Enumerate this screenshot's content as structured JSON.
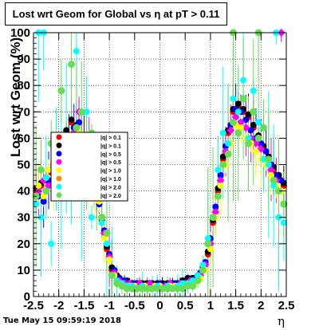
{
  "title": "Lost wrt Geom for Global vs   η at pT > 0.11",
  "footer": "Tue May 15 09:59:19 2018",
  "chart_data": {
    "type": "scatter",
    "title": "Lost wrt Geom for Global vs   η at pT > 0.11",
    "xlabel": "η",
    "ylabel": "Lost wrt Geom (%)",
    "xlim": [
      -2.5,
      2.5
    ],
    "ylim": [
      0,
      100
    ],
    "x_ticks": [
      "-2.5",
      "-2",
      "-1.5",
      "-1",
      "-0.5",
      "0",
      "0.5",
      "1",
      "1.5",
      "2",
      "2.5"
    ],
    "y_ticks": [
      "0",
      "10",
      "20",
      "30",
      "40",
      "50",
      "60",
      "70",
      "80",
      "90",
      "100"
    ],
    "grid": true,
    "legend_position": "center-left",
    "colors": {
      "red": "#ff0000",
      "black": "#000000",
      "blue": "#0000ff",
      "magenta": "#ff00ff",
      "yellow": "#ffff00",
      "cyan": "#00ffff",
      "green": "#66dd55",
      "orange": "#ff8800"
    },
    "legend": [
      {
        "label": "|q| > 0.1",
        "color": "#ff0000"
      },
      {
        "label": "|q| > 0.1",
        "color": "#000000"
      },
      {
        "label": "|q| > 0.5",
        "color": "#0000ff"
      },
      {
        "label": "|q| > 0.5",
        "color": "#ff00ff"
      },
      {
        "label": "|q| > 1.0",
        "color": "#ffff00"
      },
      {
        "label": "|q| > 1.0",
        "color": "#ff8800"
      },
      {
        "label": "|q| > 2.0",
        "color": "#00ffff"
      },
      {
        "label": "|q| > 2.0",
        "color": "#66dd55"
      }
    ],
    "series": [
      {
        "color": "#ff0000",
        "x": [
          -2.45,
          -2.35,
          -2.25,
          -2.15,
          -2.05,
          -1.95,
          -1.85,
          -1.75,
          -1.65,
          -1.55,
          -1.45,
          -1.35,
          -1.25,
          -1.15,
          -1.05,
          -0.95,
          -0.85,
          -0.75,
          -0.65,
          -0.55,
          -0.45,
          -0.35,
          -0.25,
          -0.15,
          -0.05,
          0.05,
          0.15,
          0.25,
          0.35,
          0.45,
          0.55,
          0.65,
          0.75,
          0.85,
          0.95,
          1.05,
          1.15,
          1.25,
          1.35,
          1.45,
          1.55,
          1.65,
          1.75,
          1.85,
          1.95,
          2.05,
          2.15,
          2.25,
          2.35,
          2.45
        ],
        "y": [
          40,
          42,
          44,
          47,
          51,
          56,
          62,
          66,
          64,
          60,
          55,
          47,
          38,
          28,
          18,
          10,
          7,
          6,
          5,
          5,
          5,
          5,
          5,
          5,
          5,
          5,
          5,
          5,
          5,
          6,
          6,
          7,
          8,
          10,
          16,
          28,
          40,
          52,
          62,
          70,
          72,
          70,
          68,
          64,
          60,
          56,
          52,
          48,
          45,
          42
        ]
      },
      {
        "color": "#000000",
        "x": [
          -2.45,
          -2.35,
          -2.25,
          -2.15,
          -2.05,
          -1.95,
          -1.85,
          -1.75,
          -1.65,
          -1.55,
          -1.45,
          -1.35,
          -1.25,
          -1.15,
          -1.05,
          -0.95,
          -0.85,
          -0.75,
          -0.65,
          -0.55,
          -0.45,
          -0.35,
          -0.25,
          -0.15,
          -0.05,
          0.05,
          0.15,
          0.25,
          0.35,
          0.45,
          0.55,
          0.65,
          0.75,
          0.85,
          0.95,
          1.05,
          1.15,
          1.25,
          1.35,
          1.45,
          1.55,
          1.65,
          1.75,
          1.85,
          1.95,
          2.05,
          2.15,
          2.25,
          2.35,
          2.45
        ],
        "y": [
          41,
          43,
          45,
          48,
          52,
          57,
          63,
          67,
          65,
          61,
          56,
          48,
          39,
          29,
          19,
          11,
          8,
          6,
          6,
          5,
          5,
          5,
          5,
          5,
          5,
          5,
          5,
          5,
          5,
          6,
          7,
          7,
          8,
          11,
          17,
          29,
          41,
          53,
          63,
          71,
          73,
          71,
          69,
          65,
          61,
          57,
          53,
          49,
          46,
          43
        ]
      },
      {
        "color": "#0000ff",
        "x": [
          -2.4,
          -2.3,
          -2.2,
          -2.1,
          -2.0,
          -1.9,
          -1.8,
          -1.7,
          -1.6,
          -1.5,
          -1.4,
          -1.3,
          -1.2,
          -1.1,
          -1.0,
          -0.9,
          -0.8,
          -0.7,
          -0.6,
          -0.5,
          -0.4,
          -0.3,
          -0.2,
          -0.1,
          0.0,
          0.1,
          0.2,
          0.3,
          0.4,
          0.5,
          0.6,
          0.7,
          0.8,
          0.9,
          1.0,
          1.1,
          1.2,
          1.3,
          1.4,
          1.5,
          1.6,
          1.7,
          1.8,
          1.9,
          2.0,
          2.1,
          2.2,
          2.3,
          2.4
        ],
        "y": [
          38,
          36,
          44,
          46,
          53,
          55,
          60,
          64,
          66,
          58,
          52,
          44,
          35,
          25,
          16,
          10,
          7,
          6,
          5,
          5,
          5,
          4,
          5,
          4,
          5,
          4,
          5,
          5,
          5,
          5,
          6,
          7,
          9,
          13,
          22,
          34,
          46,
          57,
          65,
          71,
          70,
          67,
          63,
          60,
          58,
          55,
          50,
          46,
          44
        ]
      },
      {
        "color": "#ff00ff",
        "x": [
          -2.4,
          -2.3,
          -2.2,
          -2.1,
          -2.0,
          -1.9,
          -1.8,
          -1.7,
          -1.6,
          -1.5,
          -1.4,
          -1.3,
          -1.2,
          -1.1,
          -1.0,
          -0.9,
          -0.8,
          -0.7,
          -0.6,
          -0.5,
          -0.4,
          -0.3,
          -0.2,
          -0.1,
          0.0,
          0.1,
          0.2,
          0.3,
          0.4,
          0.5,
          0.6,
          0.7,
          0.8,
          0.9,
          1.0,
          1.1,
          1.2,
          1.3,
          1.4,
          1.5,
          1.6,
          1.7,
          1.8,
          1.9,
          2.0,
          2.1,
          2.2,
          2.3,
          2.4
        ],
        "y": [
          40,
          44,
          42,
          50,
          48,
          58,
          56,
          62,
          70,
          55,
          57,
          45,
          38,
          24,
          15,
          9,
          6,
          5,
          5,
          4,
          5,
          4,
          5,
          4,
          4,
          4,
          5,
          4,
          5,
          5,
          6,
          6,
          8,
          12,
          20,
          32,
          44,
          55,
          63,
          68,
          66,
          64,
          60,
          58,
          56,
          52,
          48,
          44,
          100
        ]
      },
      {
        "color": "#ffff00",
        "x": [
          -2.4,
          -2.3,
          -2.2,
          -2.1,
          -2.0,
          -1.9,
          -1.8,
          -1.7,
          -1.6,
          -1.5,
          -1.4,
          -1.3,
          -1.2,
          -1.1,
          -1.0,
          -0.9,
          -0.8,
          -0.7,
          -0.6,
          -0.5,
          -0.4,
          -0.3,
          -0.2,
          -0.1,
          0.0,
          0.1,
          0.2,
          0.3,
          0.4,
          0.5,
          0.6,
          0.7,
          0.8,
          0.9,
          1.0,
          1.1,
          1.2,
          1.3,
          1.4,
          1.5,
          1.6,
          1.7,
          1.8,
          1.9,
          2.0,
          2.1,
          2.2,
          2.3,
          2.4
        ],
        "y": [
          42,
          38,
          48,
          40,
          46,
          60,
          52,
          58,
          62,
          50,
          54,
          40,
          36,
          22,
          14,
          8,
          5,
          4,
          4,
          4,
          3,
          4,
          3,
          4,
          4,
          3,
          4,
          4,
          4,
          4,
          5,
          5,
          7,
          10,
          18,
          30,
          42,
          50,
          58,
          65,
          64,
          60,
          58,
          55,
          52,
          50,
          46,
          42,
          40
        ]
      },
      {
        "color": "#00ffff",
        "x": [
          -2.45,
          -2.35,
          -2.25,
          -2.15,
          -2.05,
          -1.95,
          -1.85,
          -1.75,
          -1.65,
          -1.55,
          -1.45,
          -1.35,
          -1.25,
          -1.15,
          -1.05,
          -0.95,
          -0.85,
          -0.75,
          -0.65,
          -0.55,
          -0.45,
          -0.35,
          -0.25,
          -0.15,
          -0.05,
          0.05,
          0.15,
          0.25,
          0.35,
          0.45,
          0.55,
          0.65,
          0.75,
          0.85,
          0.95,
          1.05,
          1.15,
          1.25,
          1.35,
          1.45,
          1.55,
          1.65,
          1.75,
          1.85,
          1.95,
          2.05,
          2.15,
          2.25,
          2.35,
          2.45,
          -2.4,
          -2.3,
          2.3
        ],
        "y": [
          35,
          30,
          45,
          20,
          52,
          45,
          60,
          40,
          93,
          38,
          70,
          30,
          48,
          28,
          20,
          8,
          6,
          5,
          4,
          4,
          3,
          4,
          3,
          3,
          4,
          3,
          4,
          3,
          4,
          5,
          5,
          6,
          8,
          12,
          22,
          30,
          48,
          62,
          58,
          75,
          70,
          82,
          60,
          78,
          66,
          52,
          50,
          42,
          30,
          28,
          100,
          100,
          100
        ]
      },
      {
        "color": "#66dd55",
        "x": [
          -2.45,
          -2.35,
          -2.25,
          -2.15,
          -2.05,
          -1.95,
          -1.85,
          -1.75,
          -1.65,
          -1.55,
          -1.45,
          -1.35,
          -1.25,
          -1.15,
          -1.05,
          -0.95,
          -0.85,
          -0.75,
          -0.65,
          -0.55,
          -0.45,
          -0.35,
          -0.25,
          -0.15,
          -0.05,
          0.05,
          0.15,
          0.25,
          0.35,
          0.45,
          0.55,
          0.65,
          0.75,
          0.85,
          0.95,
          1.05,
          1.15,
          1.25,
          1.35,
          1.45,
          1.55,
          1.65,
          1.75,
          1.85,
          1.95,
          2.05,
          2.15,
          2.25,
          2.35,
          2.45,
          1.45,
          1.95
        ],
        "y": [
          38,
          48,
          40,
          58,
          43,
          78,
          55,
          88,
          64,
          70,
          50,
          62,
          40,
          30,
          24,
          8,
          5,
          4,
          3,
          3,
          3,
          3,
          3,
          3,
          3,
          3,
          3,
          3,
          3,
          3,
          4,
          4,
          6,
          10,
          20,
          30,
          38,
          50,
          54,
          66,
          62,
          75,
          58,
          70,
          60,
          64,
          52,
          44,
          40,
          35,
          100,
          100
        ]
      }
    ]
  }
}
